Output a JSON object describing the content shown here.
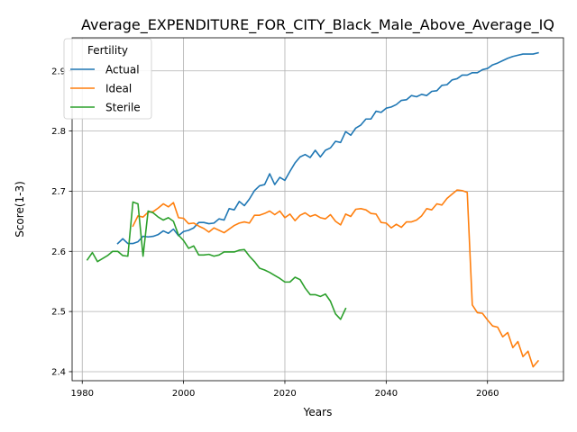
{
  "chart_data": {
    "type": "line",
    "title": "Average_EXPENDITURE_FOR_CITY_Black_Male_Above_Average_IQ",
    "xlabel": "Years",
    "ylabel": "Score(1-3)",
    "xlim": [
      1978,
      2075
    ],
    "ylim": [
      2.385,
      2.955
    ],
    "x_ticks": [
      1980,
      2000,
      2020,
      2040,
      2060
    ],
    "y_ticks": [
      2.4,
      2.5,
      2.6,
      2.7,
      2.8,
      2.9
    ],
    "grid": true,
    "legend": {
      "title": "Fertility",
      "position": "top-left"
    },
    "series": [
      {
        "name": "Actual",
        "color": "#1f77b4",
        "x": [
          1987,
          1988,
          1989,
          1990,
          1991,
          1992,
          1993,
          1994,
          1995,
          1996,
          1997,
          1998,
          1999,
          2000,
          2001,
          2002,
          2003,
          2004,
          2005,
          2006,
          2007,
          2008,
          2009,
          2010,
          2011,
          2012,
          2013,
          2014,
          2015,
          2016,
          2017,
          2018,
          2019,
          2020,
          2021,
          2022,
          2023,
          2024,
          2025,
          2026,
          2027,
          2028,
          2029,
          2030,
          2031,
          2032,
          2033,
          2034,
          2035,
          2036,
          2037,
          2038,
          2039,
          2040,
          2041,
          2042,
          2043,
          2044,
          2045,
          2046,
          2047,
          2048,
          2049,
          2050,
          2051,
          2052,
          2053,
          2054,
          2055,
          2056,
          2057,
          2058,
          2059,
          2060,
          2061,
          2062,
          2063,
          2064,
          2065,
          2066,
          2067,
          2068,
          2069,
          2070
        ],
        "values": [
          2.613,
          2.621,
          2.613,
          2.613,
          2.616,
          2.625,
          2.624,
          2.625,
          2.628,
          2.634,
          2.63,
          2.637,
          2.626,
          2.633,
          2.635,
          2.639,
          2.648,
          2.648,
          2.646,
          2.647,
          2.654,
          2.652,
          2.671,
          2.669,
          2.683,
          2.676,
          2.687,
          2.701,
          2.709,
          2.711,
          2.729,
          2.711,
          2.723,
          2.718,
          2.733,
          2.747,
          2.757,
          2.761,
          2.756,
          2.768,
          2.757,
          2.768,
          2.772,
          2.783,
          2.781,
          2.799,
          2.793,
          2.805,
          2.81,
          2.82,
          2.82,
          2.833,
          2.831,
          2.838,
          2.84,
          2.844,
          2.851,
          2.852,
          2.859,
          2.857,
          2.861,
          2.859,
          2.866,
          2.867,
          2.876,
          2.877,
          2.885,
          2.887,
          2.893,
          2.893,
          2.897,
          2.897,
          2.902,
          2.904,
          2.91,
          2.913,
          2.917,
          2.921,
          2.924,
          2.926,
          2.928,
          2.928,
          2.928,
          2.93
        ]
      },
      {
        "name": "Ideal",
        "color": "#ff7f0e",
        "x": [
          1990,
          1991,
          1992,
          1993,
          1994,
          1995,
          1996,
          1997,
          1998,
          1999,
          2000,
          2001,
          2002,
          2003,
          2004,
          2005,
          2006,
          2007,
          2008,
          2009,
          2010,
          2011,
          2012,
          2013,
          2014,
          2015,
          2016,
          2017,
          2018,
          2019,
          2020,
          2021,
          2022,
          2023,
          2024,
          2025,
          2026,
          2027,
          2028,
          2029,
          2030,
          2031,
          2032,
          2033,
          2034,
          2035,
          2036,
          2037,
          2038,
          2039,
          2040,
          2041,
          2042,
          2043,
          2044,
          2045,
          2046,
          2047,
          2048,
          2049,
          2050,
          2051,
          2052,
          2053,
          2054,
          2055,
          2056,
          2057,
          2058,
          2059,
          2060,
          2061,
          2062,
          2063,
          2064,
          2065,
          2066,
          2067,
          2068,
          2069,
          2070
        ],
        "values": [
          2.642,
          2.659,
          2.657,
          2.665,
          2.666,
          2.672,
          2.679,
          2.674,
          2.681,
          2.656,
          2.655,
          2.646,
          2.647,
          2.642,
          2.638,
          2.632,
          2.639,
          2.635,
          2.631,
          2.637,
          2.643,
          2.647,
          2.649,
          2.647,
          2.66,
          2.66,
          2.663,
          2.667,
          2.661,
          2.667,
          2.656,
          2.662,
          2.651,
          2.66,
          2.664,
          2.658,
          2.661,
          2.656,
          2.654,
          2.661,
          2.65,
          2.644,
          2.662,
          2.658,
          2.67,
          2.671,
          2.669,
          2.663,
          2.662,
          2.648,
          2.647,
          2.639,
          2.645,
          2.64,
          2.649,
          2.649,
          2.652,
          2.659,
          2.671,
          2.669,
          2.679,
          2.677,
          2.688,
          2.695,
          2.702,
          2.701,
          2.698,
          2.511,
          2.498,
          2.497,
          2.486,
          2.476,
          2.474,
          2.458,
          2.465,
          2.44,
          2.45,
          2.425,
          2.434,
          2.408,
          2.418
        ]
      },
      {
        "name": "Sterile",
        "color": "#2ca02c",
        "x": [
          1981,
          1982,
          1983,
          1984,
          1985,
          1986,
          1987,
          1988,
          1989,
          1990,
          1991,
          1992,
          1993,
          1994,
          1995,
          1996,
          1997,
          1998,
          1999,
          2000,
          2001,
          2002,
          2003,
          2004,
          2005,
          2006,
          2007,
          2008,
          2009,
          2010,
          2011,
          2012,
          2013,
          2014,
          2015,
          2016,
          2017,
          2018,
          2019,
          2020,
          2021,
          2022,
          2023,
          2024,
          2025,
          2026,
          2027,
          2028,
          2029,
          2030,
          2031,
          2032
        ],
        "values": [
          2.586,
          2.598,
          2.583,
          2.588,
          2.593,
          2.6,
          2.6,
          2.593,
          2.592,
          2.682,
          2.679,
          2.592,
          2.667,
          2.664,
          2.657,
          2.652,
          2.656,
          2.65,
          2.627,
          2.618,
          2.605,
          2.609,
          2.594,
          2.594,
          2.595,
          2.592,
          2.594,
          2.599,
          2.599,
          2.599,
          2.602,
          2.603,
          2.592,
          2.583,
          2.572,
          2.569,
          2.565,
          2.56,
          2.555,
          2.549,
          2.549,
          2.557,
          2.553,
          2.539,
          2.528,
          2.528,
          2.525,
          2.529,
          2.517,
          2.496,
          2.487,
          2.505
        ]
      }
    ]
  }
}
